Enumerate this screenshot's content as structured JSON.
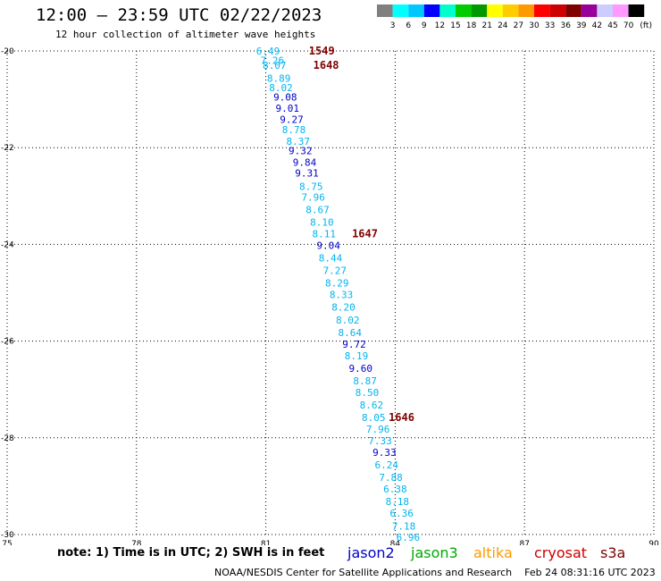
{
  "header": {
    "title": "12:00 – 23:59 UTC 02/22/2023",
    "subtitle": "12 hour collection of altimeter wave heights"
  },
  "scale": {
    "colors": [
      "#808080",
      "#00ffff",
      "#00c8ff",
      "#0000ff",
      "#00ffcc",
      "#00cc00",
      "#009900",
      "#ffff00",
      "#ffcc00",
      "#ff9900",
      "#ff0000",
      "#cc0000",
      "#800000",
      "#990099",
      "#ccccff",
      "#ff99ff",
      "#000000"
    ],
    "labels": [
      "3",
      "6",
      "9",
      "12",
      "15",
      "18",
      "21",
      "24",
      "27",
      "30",
      "33",
      "36",
      "39",
      "42",
      "45",
      "70"
    ],
    "unit": "(ft)"
  },
  "chart_data": {
    "type": "scatter",
    "xlim": [
      75,
      90
    ],
    "ylim": [
      -30,
      -20
    ],
    "xticks": [
      "75",
      "78",
      "81",
      "84",
      "87",
      "90"
    ],
    "yticks": [
      "-20",
      "-22",
      "-24",
      "-26",
      "-28",
      "-30"
    ],
    "grid": true,
    "points": [
      {
        "x": 81.05,
        "y": -20.0,
        "label": "6.49",
        "color": "#00b4f0"
      },
      {
        "x": 81.15,
        "y": -20.19,
        "label": "7.26",
        "color": "#00b4f0"
      },
      {
        "x": 81.2,
        "y": -20.3,
        "label": "8.07",
        "color": "#00b4f0"
      },
      {
        "x": 81.3,
        "y": -20.56,
        "label": "8.89",
        "color": "#00b4f0"
      },
      {
        "x": 81.35,
        "y": -20.76,
        "label": "8.02",
        "color": "#00b4f0"
      },
      {
        "x": 81.45,
        "y": -20.95,
        "label": "9.08",
        "color": "#0000c8"
      },
      {
        "x": 81.5,
        "y": -21.18,
        "label": "9.01",
        "color": "#0000c8"
      },
      {
        "x": 81.6,
        "y": -21.41,
        "label": "9.27",
        "color": "#0000c8"
      },
      {
        "x": 81.65,
        "y": -21.63,
        "label": "8.78",
        "color": "#00b4f0"
      },
      {
        "x": 81.75,
        "y": -21.87,
        "label": "8.37",
        "color": "#00b4f0"
      },
      {
        "x": 81.8,
        "y": -22.06,
        "label": "9.32",
        "color": "#0000c8"
      },
      {
        "x": 81.9,
        "y": -22.3,
        "label": "9.84",
        "color": "#0000c8"
      },
      {
        "x": 81.95,
        "y": -22.52,
        "label": "9.31",
        "color": "#0000c8"
      },
      {
        "x": 82.05,
        "y": -22.8,
        "label": "8.75",
        "color": "#00b4f0"
      },
      {
        "x": 82.1,
        "y": -23.02,
        "label": "7.96",
        "color": "#00b4f0"
      },
      {
        "x": 82.2,
        "y": -23.28,
        "label": "8.67",
        "color": "#00b4f0"
      },
      {
        "x": 82.3,
        "y": -23.54,
        "label": "8.10",
        "color": "#00b4f0"
      },
      {
        "x": 82.35,
        "y": -23.78,
        "label": "8.11",
        "color": "#00b4f0"
      },
      {
        "x": 82.45,
        "y": -24.02,
        "label": "9.04",
        "color": "#0000c8"
      },
      {
        "x": 82.5,
        "y": -24.28,
        "label": "8.44",
        "color": "#00b4f0"
      },
      {
        "x": 82.6,
        "y": -24.54,
        "label": "7.27",
        "color": "#00b4f0"
      },
      {
        "x": 82.65,
        "y": -24.8,
        "label": "8.29",
        "color": "#00b4f0"
      },
      {
        "x": 82.75,
        "y": -25.04,
        "label": "8.33",
        "color": "#00b4f0"
      },
      {
        "x": 82.8,
        "y": -25.3,
        "label": "8.20",
        "color": "#00b4f0"
      },
      {
        "x": 82.9,
        "y": -25.56,
        "label": "8.02",
        "color": "#00b4f0"
      },
      {
        "x": 82.95,
        "y": -25.82,
        "label": "8.64",
        "color": "#00b4f0"
      },
      {
        "x": 83.05,
        "y": -26.06,
        "label": "9.72",
        "color": "#0000c8"
      },
      {
        "x": 83.1,
        "y": -26.3,
        "label": "8.19",
        "color": "#00b4f0"
      },
      {
        "x": 83.2,
        "y": -26.56,
        "label": "9.60",
        "color": "#0000c8"
      },
      {
        "x": 83.3,
        "y": -26.82,
        "label": "8.87",
        "color": "#00b4f0"
      },
      {
        "x": 83.35,
        "y": -27.06,
        "label": "8.50",
        "color": "#00b4f0"
      },
      {
        "x": 83.45,
        "y": -27.32,
        "label": "8.62",
        "color": "#00b4f0"
      },
      {
        "x": 83.5,
        "y": -27.58,
        "label": "8.05",
        "color": "#00b4f0"
      },
      {
        "x": 83.6,
        "y": -27.82,
        "label": "7.96",
        "color": "#00b4f0"
      },
      {
        "x": 83.65,
        "y": -28.06,
        "label": "7.33",
        "color": "#00b4f0"
      },
      {
        "x": 83.75,
        "y": -28.3,
        "label": "9.33",
        "color": "#0000c8"
      },
      {
        "x": 83.8,
        "y": -28.56,
        "label": "6.24",
        "color": "#00b4f0"
      },
      {
        "x": 83.9,
        "y": -28.82,
        "label": "7.88",
        "color": "#00b4f0"
      },
      {
        "x": 84.0,
        "y": -29.06,
        "label": "6.38",
        "color": "#00b4f0"
      },
      {
        "x": 84.05,
        "y": -29.32,
        "label": "8.18",
        "color": "#00b4f0"
      },
      {
        "x": 84.15,
        "y": -29.56,
        "label": "6.36",
        "color": "#00b4f0"
      },
      {
        "x": 84.2,
        "y": -29.82,
        "label": "7.18",
        "color": "#00b4f0"
      },
      {
        "x": 84.3,
        "y": -30.06,
        "label": "6.96",
        "color": "#00b4f0"
      }
    ],
    "times": [
      {
        "x": 81.75,
        "y": -20.0,
        "label": "1549"
      },
      {
        "x": 81.85,
        "y": -20.3,
        "label": "1648"
      },
      {
        "x": 82.75,
        "y": -23.78,
        "label": "1647"
      },
      {
        "x": 83.6,
        "y": -27.58,
        "label": "1646"
      }
    ]
  },
  "footer": {
    "note": "note: 1) Time is in UTC; 2) SWH is in feet",
    "satellites": [
      {
        "name": "jason2",
        "color": "#0000cc"
      },
      {
        "name": "jason3",
        "color": "#00aa00"
      },
      {
        "name": "altika",
        "color": "#ff9900"
      },
      {
        "name": "cryosat",
        "color": "#cc0000"
      },
      {
        "name": "s3a",
        "color": "#800000"
      }
    ],
    "credit": "NOAA/NESDIS Center for Satellite Applications and Research    Feb 24 08:31:16 UTC 2023"
  },
  "colors": {
    "time_label": "#800000",
    "grid": "#000000"
  }
}
